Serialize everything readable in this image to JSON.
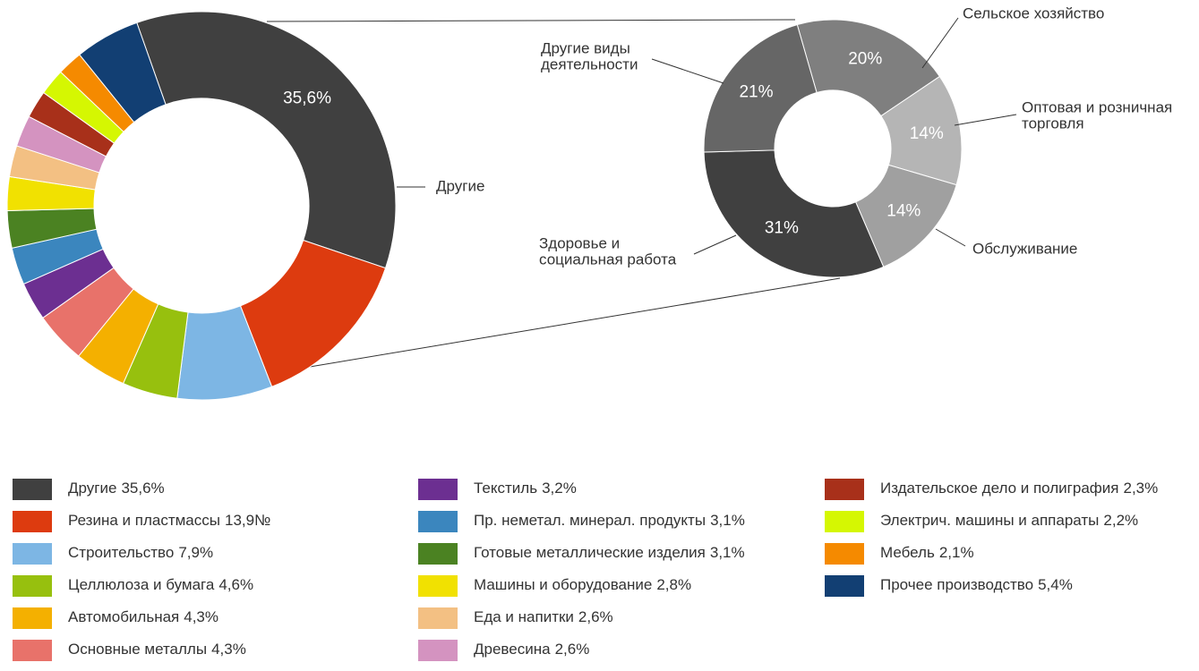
{
  "chart_data": [
    {
      "type": "donut",
      "categories": [
        "Другие",
        "Резина и пластмассы",
        "Строительство",
        "Целлюлоза и бумага",
        "Автомобильная",
        "Основные металлы",
        "Текстиль",
        "Пр. неметал. минерал. продукты",
        "Готовые металлические изделия",
        "Машины и оборудование",
        "Еда и напитки",
        "Древесина",
        "Издательское дело и полиграфия",
        "Электрич. машины и аппараты",
        "Мебель",
        "Прочее производство"
      ],
      "values": [
        35.6,
        13.9,
        7.9,
        4.6,
        4.3,
        4.3,
        3.2,
        3.1,
        3.1,
        2.8,
        2.6,
        2.6,
        2.3,
        2.2,
        2.1,
        5.4
      ],
      "value_labels": [
        "35,6%",
        "13,9№",
        "7,9%",
        "4,6%",
        "4,3%",
        "4,3%",
        "3,2%",
        "3,1%",
        "3,1%",
        "2,8%",
        "2,6%",
        "2,6%",
        "2,3%",
        "2,2%",
        "2,1%",
        "5,4%"
      ],
      "colors": [
        "#404040",
        "#dd3b0f",
        "#7db6e4",
        "#97c00e",
        "#f4b000",
        "#e8726a",
        "#6c2f91",
        "#3b86be",
        "#4b8222",
        "#f1e101",
        "#f3c083",
        "#d493c0",
        "#a8301a",
        "#d5f702",
        "#f58a00",
        "#123f73"
      ]
    },
    {
      "type": "donut",
      "categories": [
        [
          "Сельское хозяйство"
        ],
        [
          "Оптовая и розничная",
          "торговля"
        ],
        [
          "Обслуживание"
        ],
        [
          "Здоровье и",
          "социальная работа"
        ],
        [
          "Другие виды",
          "деятельности"
        ]
      ],
      "values": [
        20,
        14,
        14,
        31,
        21
      ],
      "value_labels": [
        "20%",
        "14%",
        "14%",
        "31%",
        "21%"
      ],
      "colors": [
        "#7f7f7f",
        "#b5b5b5",
        "#a0a0a0",
        "#404040",
        "#666666"
      ]
    }
  ]
}
